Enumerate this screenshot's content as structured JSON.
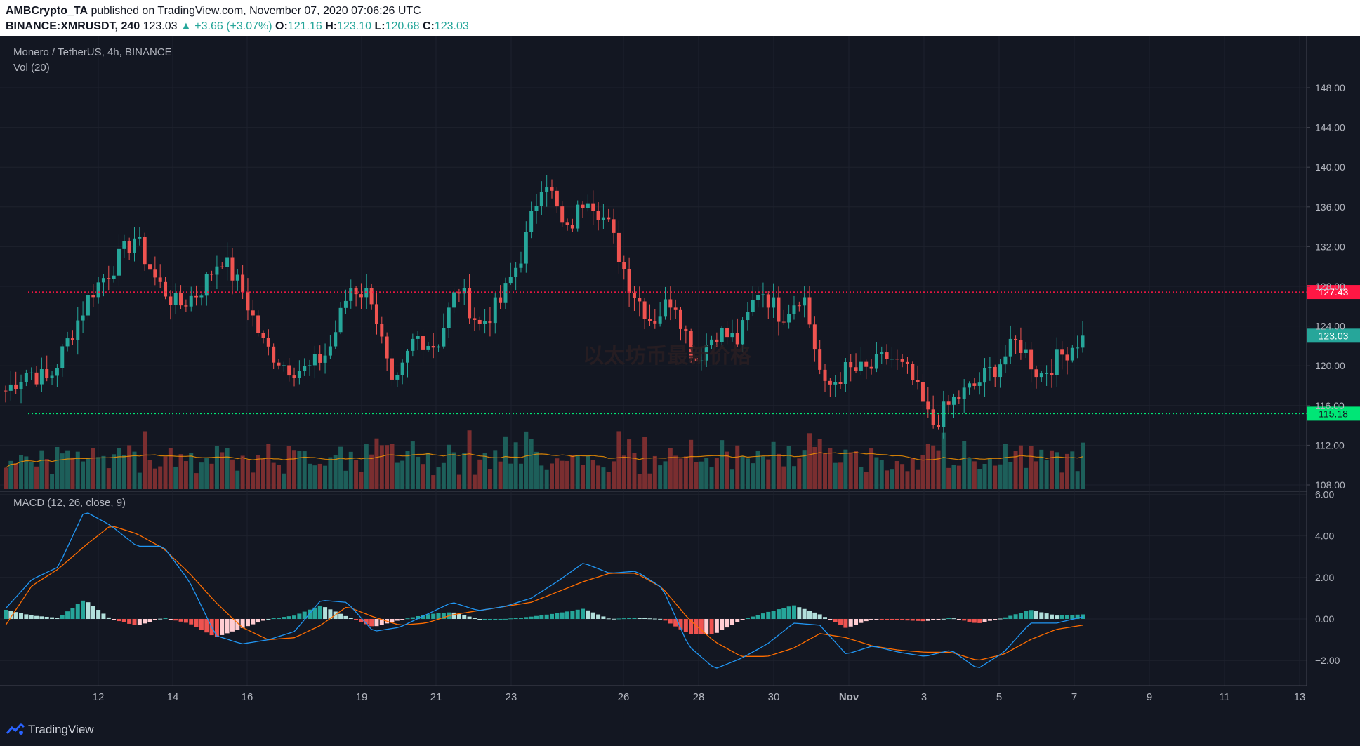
{
  "header": {
    "line1_author": "AMBCrypto_TA",
    "line1_rest": "published on TradingView.com, November 07, 2020 07:06:26 UTC",
    "symbol": "BINANCE:XMRUSDT, 240",
    "last": "123.03",
    "change": "▲ +3.66 (+3.07%)",
    "o_label": "O:",
    "o_val": "121.16",
    "h_label": "H:",
    "h_val": "123.10",
    "l_label": "L:",
    "l_val": "120.68",
    "c_label": "C:",
    "c_val": "123.03"
  },
  "legend": {
    "main": "Monero / TetherUS, 4h, BINANCE",
    "vol": "Vol (20)",
    "macd": "MACD (12, 26, close, 9)"
  },
  "watermark": "以太坊币最新价格",
  "footer": {
    "brand": "TradingView"
  },
  "colors": {
    "up": "#26a69a",
    "down": "#ef5350",
    "bg": "#131722",
    "grid": "#1e222d",
    "macd": "#2196f3",
    "signal": "#ff6d00"
  },
  "chart_data": [
    {
      "type": "candlestick",
      "title": "Monero / TetherUS, 4h, BINANCE",
      "y_ticks": [
        "108.00",
        "112.00",
        "116.00",
        "120.00",
        "124.00",
        "128.00",
        "132.00",
        "136.00",
        "140.00",
        "144.00",
        "148.00"
      ],
      "ylim": [
        107,
        151
      ],
      "x_ticks": [
        "12",
        "14",
        "16",
        "19",
        "21",
        "23",
        "26",
        "28",
        "30",
        "Nov",
        "3",
        "5",
        "7",
        "9",
        "11",
        "13"
      ],
      "price_lines": [
        {
          "value": 127.43,
          "label": "127.43",
          "color": "#ff1744",
          "style": "dotted"
        },
        {
          "value": 115.18,
          "label": "115.18",
          "color": "#00e676",
          "style": "dotted"
        }
      ],
      "last_price": {
        "value": 123.03,
        "label": "123.03"
      },
      "key_prices": [
        117.5,
        119.5,
        118.5,
        123.0,
        127.5,
        130.0,
        133.0,
        128.5,
        126.0,
        127.5,
        131.0,
        127.5,
        122.0,
        120.0,
        119.5,
        121.5,
        128.0,
        127.0,
        117.0,
        123.0,
        122.0,
        128.0,
        124.0,
        126.5,
        131.5,
        139.5,
        133.0,
        137.5,
        134.0,
        128.0,
        124.5,
        127.0,
        120.5,
        123.5,
        122.5,
        128.0,
        125.0,
        127.5,
        117.5,
        119.5,
        119.5,
        121.0,
        119.0,
        114.0,
        116.5,
        118.0,
        120.0,
        122.5,
        119.0,
        121.0,
        123.0
      ],
      "volume": {
        "name": "Vol (20)",
        "ylim": [
          0,
          100
        ]
      }
    },
    {
      "type": "macd",
      "title": "MACD (12, 26, close, 9)",
      "y_ticks": [
        "6.00",
        "4.00",
        "2.00",
        "0.00",
        "−2.00"
      ],
      "ylim": [
        -3.2,
        6.2
      ],
      "macd_keys": [
        0.5,
        1.9,
        2.5,
        5.2,
        4.5,
        3.5,
        3.5,
        1.8,
        -0.8,
        -1.2,
        -1.0,
        -0.6,
        0.9,
        0.8,
        -0.6,
        -0.4,
        0.2,
        0.8,
        0.4,
        0.6,
        1.0,
        1.8,
        2.7,
        2.2,
        2.3,
        1.5,
        -1.3,
        -2.4,
        -1.9,
        -1.2,
        -0.2,
        -0.3,
        -1.7,
        -1.3,
        -1.6,
        -1.8,
        -1.5,
        -2.4,
        -1.6,
        -0.2,
        -0.2,
        0.1
      ],
      "signal_keys": [
        -0.3,
        1.6,
        2.4,
        3.5,
        4.5,
        4.1,
        3.4,
        2.2,
        0.8,
        -0.4,
        -1.0,
        -0.9,
        -0.3,
        0.6,
        0.1,
        -0.3,
        -0.2,
        0.2,
        0.4,
        0.6,
        0.8,
        1.3,
        1.8,
        2.2,
        2.2,
        1.5,
        0.0,
        -1.1,
        -1.8,
        -1.8,
        -1.4,
        -0.7,
        -0.9,
        -1.3,
        -1.5,
        -1.6,
        -1.6,
        -2.0,
        -1.7,
        -1.0,
        -0.5,
        -0.3
      ]
    }
  ]
}
